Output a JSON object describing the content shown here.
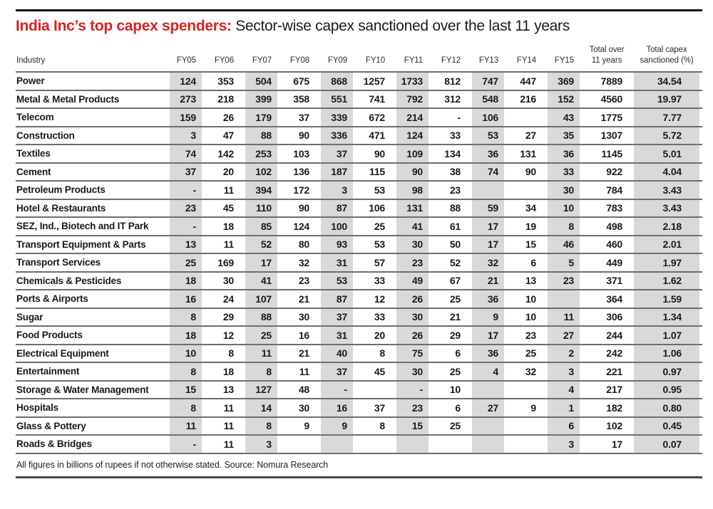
{
  "title": {
    "highlight": "India Inc’s top capex spenders:",
    "rest": " Sector-wise capex sanctioned over the last 11 years"
  },
  "table": {
    "header": {
      "industry": "Industry",
      "years": [
        "FY05",
        "FY06",
        "FY07",
        "FY08",
        "FY09",
        "FY10",
        "FY11",
        "FY12",
        "FY13",
        "FY14",
        "FY15"
      ],
      "total": "Total over\n11 years",
      "pct": "Total capex\nsanctioned (%)"
    },
    "shaded_year_indices": [
      0,
      2,
      4,
      6,
      8,
      10
    ]
  },
  "chart_data": {
    "type": "table",
    "title": "India Inc’s top capex spenders: Sector-wise capex sanctioned over the last 11 years",
    "columns": [
      "Industry",
      "FY05",
      "FY06",
      "FY07",
      "FY08",
      "FY09",
      "FY10",
      "FY11",
      "FY12",
      "FY13",
      "FY14",
      "FY15",
      "Total over 11 years",
      "Total capex sanctioned (%)"
    ],
    "rows": [
      [
        "Power",
        "124",
        "353",
        "504",
        "675",
        "868",
        "1257",
        "1733",
        "812",
        "747",
        "447",
        "369",
        "7889",
        "34.54"
      ],
      [
        "Metal & Metal Products",
        "273",
        "218",
        "399",
        "358",
        "551",
        "741",
        "792",
        "312",
        "548",
        "216",
        "152",
        "4560",
        "19.97"
      ],
      [
        "Telecom",
        "159",
        "26",
        "179",
        "37",
        "339",
        "672",
        "214",
        "-",
        "106",
        "",
        "43",
        "1775",
        "7.77"
      ],
      [
        "Construction",
        "3",
        "47",
        "88",
        "90",
        "336",
        "471",
        "124",
        "33",
        "53",
        "27",
        "35",
        "1307",
        "5.72"
      ],
      [
        "Textiles",
        "74",
        "142",
        "253",
        "103",
        "37",
        "90",
        "109",
        "134",
        "36",
        "131",
        "36",
        "1145",
        "5.01"
      ],
      [
        "Cement",
        "37",
        "20",
        "102",
        "136",
        "187",
        "115",
        "90",
        "38",
        "74",
        "90",
        "33",
        "922",
        "4.04"
      ],
      [
        "Petroleum Products",
        "-",
        "11",
        "394",
        "172",
        "3",
        "53",
        "98",
        "23",
        "",
        "",
        "30",
        "784",
        "3.43"
      ],
      [
        "Hotel & Restaurants",
        "23",
        "45",
        "110",
        "90",
        "87",
        "106",
        "131",
        "88",
        "59",
        "34",
        "10",
        "783",
        "3.43"
      ],
      [
        "SEZ, Ind., Biotech and IT Park",
        "-",
        "18",
        "85",
        "124",
        "100",
        "25",
        "41",
        "61",
        "17",
        "19",
        "8",
        "498",
        "2.18"
      ],
      [
        "Transport Equipment & Parts",
        "13",
        "11",
        "52",
        "80",
        "93",
        "53",
        "30",
        "50",
        "17",
        "15",
        "46",
        "460",
        "2.01"
      ],
      [
        "Transport Services",
        "25",
        "169",
        "17",
        "32",
        "31",
        "57",
        "23",
        "52",
        "32",
        "6",
        "5",
        "449",
        "1.97"
      ],
      [
        "Chemicals & Pesticides",
        "18",
        "30",
        "41",
        "23",
        "53",
        "33",
        "49",
        "67",
        "21",
        "13",
        "23",
        "371",
        "1.62"
      ],
      [
        "Ports & Airports",
        "16",
        "24",
        "107",
        "21",
        "87",
        "12",
        "26",
        "25",
        "36",
        "10",
        "",
        "364",
        "1.59"
      ],
      [
        "Sugar",
        "8",
        "29",
        "88",
        "30",
        "37",
        "33",
        "30",
        "21",
        "9",
        "10",
        "11",
        "306",
        "1.34"
      ],
      [
        "Food Products",
        "18",
        "12",
        "25",
        "16",
        "31",
        "20",
        "26",
        "29",
        "17",
        "23",
        "27",
        "244",
        "1.07"
      ],
      [
        "Electrical Equipment",
        "10",
        "8",
        "11",
        "21",
        "40",
        "8",
        "75",
        "6",
        "36",
        "25",
        "2",
        "242",
        "1.06"
      ],
      [
        "Entertainment",
        "8",
        "18",
        "8",
        "11",
        "37",
        "45",
        "30",
        "25",
        "4",
        "32",
        "3",
        "221",
        "0.97"
      ],
      [
        "Storage & Water Management",
        "15",
        "13",
        "127",
        "48",
        "-",
        "",
        "-",
        "10",
        "",
        "",
        "4",
        "217",
        "0.95"
      ],
      [
        "Hospitals",
        "8",
        "11",
        "14",
        "30",
        "16",
        "37",
        "23",
        "6",
        "27",
        "9",
        "1",
        "182",
        "0.80"
      ],
      [
        "Glass & Pottery",
        "11",
        "11",
        "8",
        "9",
        "9",
        "8",
        "15",
        "25",
        "",
        "",
        "6",
        "102",
        "0.45"
      ],
      [
        "Roads & Bridges",
        "-",
        "11",
        "3",
        "",
        "",
        "",
        "",
        "",
        "",
        "",
        "3",
        "17",
        "0.07"
      ]
    ]
  },
  "footnote": "All figures in billions of rupees if not otherwise stated. Source: Nomura Research",
  "colors": {
    "accent_red": "#d8231f",
    "cell_shade": "#d9d9d9",
    "row_line": "#6e6e6e",
    "top_rule": "#141414",
    "bottom_rule": "#474747"
  }
}
